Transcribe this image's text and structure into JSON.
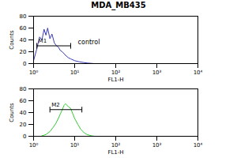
{
  "chart_data": [
    {
      "type": "line",
      "title": "MDA_MB435",
      "color": "#3a3ab8",
      "x": [
        1,
        1.2,
        1.4,
        1.6,
        1.8,
        2,
        2.2,
        2.5,
        2.8,
        3.2,
        3.6,
        4,
        4.5,
        5,
        6,
        7,
        8,
        10,
        13,
        16,
        20,
        30,
        50
      ],
      "values": [
        5,
        25,
        45,
        40,
        58,
        48,
        60,
        42,
        50,
        35,
        30,
        28,
        22,
        20,
        14,
        10,
        8,
        5,
        3,
        2,
        1,
        0,
        0
      ],
      "xlabel": "FL1-H",
      "ylabel": "Counts",
      "log": "x",
      "xlim": [
        1,
        10000
      ],
      "xticks": [
        {
          "value": 1,
          "label": "10⁰"
        },
        {
          "value": 10,
          "label": "10¹"
        },
        {
          "value": 100,
          "label": "10²"
        },
        {
          "value": 1000,
          "label": "10³"
        },
        {
          "value": 10000,
          "label": "10⁴"
        }
      ],
      "ylim": [
        0,
        80
      ],
      "yticks": [
        0,
        20,
        40,
        60,
        80
      ],
      "markers": [
        {
          "label": "M1",
          "range": [
            1.2,
            8
          ],
          "y": 30
        }
      ],
      "annotations": [
        {
          "text": "control",
          "x": 12,
          "y": 36
        }
      ]
    },
    {
      "type": "line",
      "color": "#33cc33",
      "x": [
        1.5,
        2,
        2.5,
        3,
        3.5,
        4,
        4.5,
        5,
        5.5,
        6,
        7,
        8,
        9,
        10,
        12,
        14,
        17,
        20,
        25,
        30
      ],
      "values": [
        0,
        3,
        8,
        15,
        22,
        30,
        38,
        45,
        52,
        55,
        50,
        47,
        38,
        30,
        20,
        12,
        6,
        3,
        1,
        0
      ],
      "xlabel": "FL1-H",
      "ylabel": "Counts",
      "log": "x",
      "xlim": [
        1,
        10000
      ],
      "xticks": [
        {
          "value": 1,
          "label": "10⁰"
        },
        {
          "value": 10,
          "label": "10¹"
        },
        {
          "value": 100,
          "label": "10²"
        },
        {
          "value": 1000,
          "label": "10³"
        },
        {
          "value": 10000,
          "label": "10⁴"
        }
      ],
      "ylim": [
        0,
        80
      ],
      "yticks": [
        0,
        20,
        40,
        60,
        80
      ],
      "markers": [
        {
          "label": "M2",
          "range": [
            2.5,
            15
          ],
          "y": 45
        }
      ]
    }
  ]
}
